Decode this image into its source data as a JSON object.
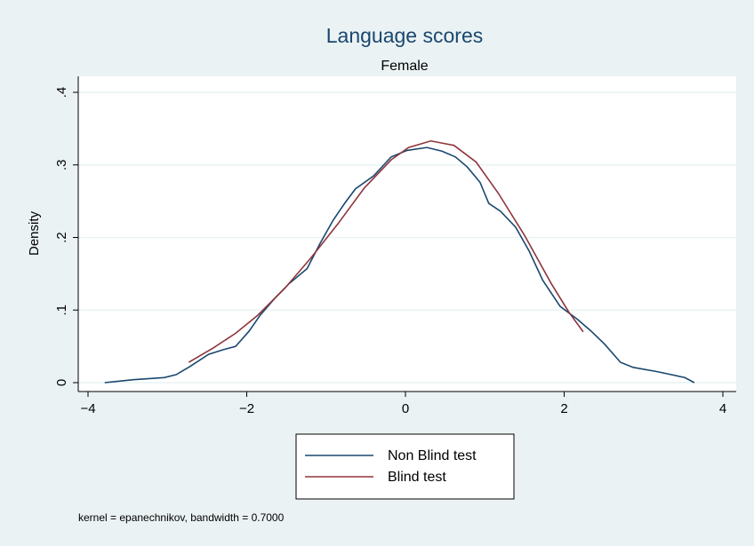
{
  "chart_data": {
    "type": "line",
    "title": "Language scores",
    "subtitle": "Female",
    "ylabel": "Density",
    "note": "kernel = epanechnikov, bandwidth = 0.7000",
    "xlim": [
      -4,
      4
    ],
    "ylim": [
      0,
      0.4
    ],
    "xticks": [
      {
        "value": -4,
        "label": "−4"
      },
      {
        "value": -2,
        "label": "−2"
      },
      0,
      2,
      4
    ],
    "yticks": [
      0,
      {
        "value": 0.1,
        "label": ".1"
      },
      {
        "value": 0.2,
        "label": ".2"
      },
      {
        "value": 0.3,
        "label": ".3"
      },
      {
        "value": 0.4,
        "label": ".4"
      }
    ],
    "grid": true,
    "series": [
      {
        "name": "Non Blind test",
        "color": "#1a476f",
        "x": [
          -3.79,
          -3.43,
          -3.04,
          -2.89,
          -2.72,
          -2.48,
          -2.31,
          -2.14,
          -1.97,
          -1.83,
          -1.64,
          -1.47,
          -1.24,
          -1.08,
          -0.91,
          -0.76,
          -0.63,
          -0.4,
          -0.18,
          0.02,
          0.27,
          0.46,
          0.63,
          0.78,
          0.94,
          1.05,
          1.2,
          1.39,
          1.56,
          1.73,
          1.95,
          2.17,
          2.34,
          2.51,
          2.71,
          2.87,
          3.18,
          3.52,
          3.64
        ],
        "values": [
          0,
          0.004,
          0.007,
          0.011,
          0.022,
          0.039,
          0.045,
          0.05,
          0.071,
          0.093,
          0.117,
          0.136,
          0.157,
          0.191,
          0.224,
          0.248,
          0.267,
          0.285,
          0.311,
          0.32,
          0.324,
          0.319,
          0.311,
          0.297,
          0.276,
          0.247,
          0.236,
          0.214,
          0.181,
          0.141,
          0.105,
          0.087,
          0.071,
          0.053,
          0.028,
          0.021,
          0.015,
          0.007,
          0
        ]
      },
      {
        "name": "Blind test",
        "color": "#90353b",
        "x": [
          -2.73,
          -2.42,
          -2.14,
          -1.86,
          -1.52,
          -1.19,
          -0.85,
          -0.52,
          -0.18,
          0.04,
          0.32,
          0.61,
          0.89,
          1.17,
          1.5,
          1.84,
          2.06,
          2.24
        ],
        "values": [
          0.028,
          0.048,
          0.068,
          0.093,
          0.13,
          0.172,
          0.219,
          0.268,
          0.307,
          0.324,
          0.333,
          0.327,
          0.304,
          0.261,
          0.203,
          0.136,
          0.097,
          0.07
        ]
      }
    ]
  }
}
